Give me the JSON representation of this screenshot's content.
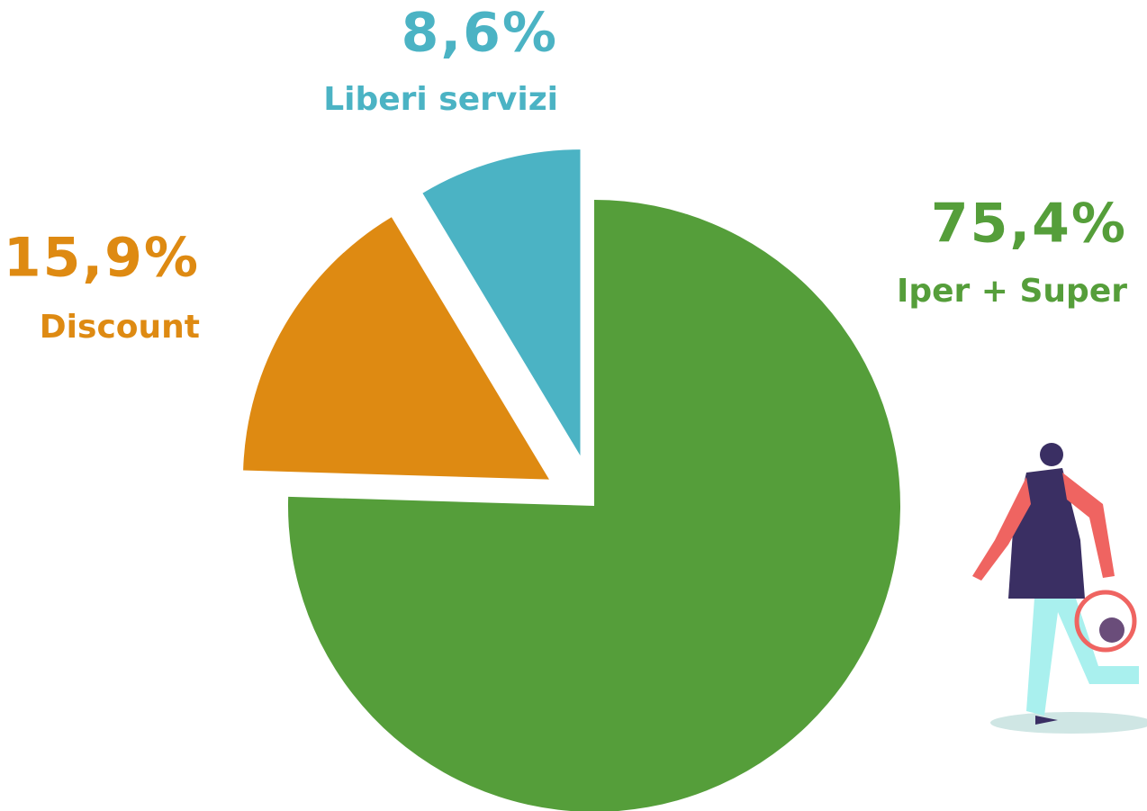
{
  "chart_data": {
    "type": "pie",
    "categories": [
      "Iper + Super",
      "Discount",
      "Liberi servizi"
    ],
    "values": [
      75.4,
      15.9,
      8.6
    ],
    "value_labels": [
      "75,4%",
      "15,9%",
      "8,6%"
    ],
    "colors": [
      "#559e3a",
      "#de8a12",
      "#4bb3c4"
    ],
    "exploded": [
      false,
      true,
      true
    ]
  }
}
